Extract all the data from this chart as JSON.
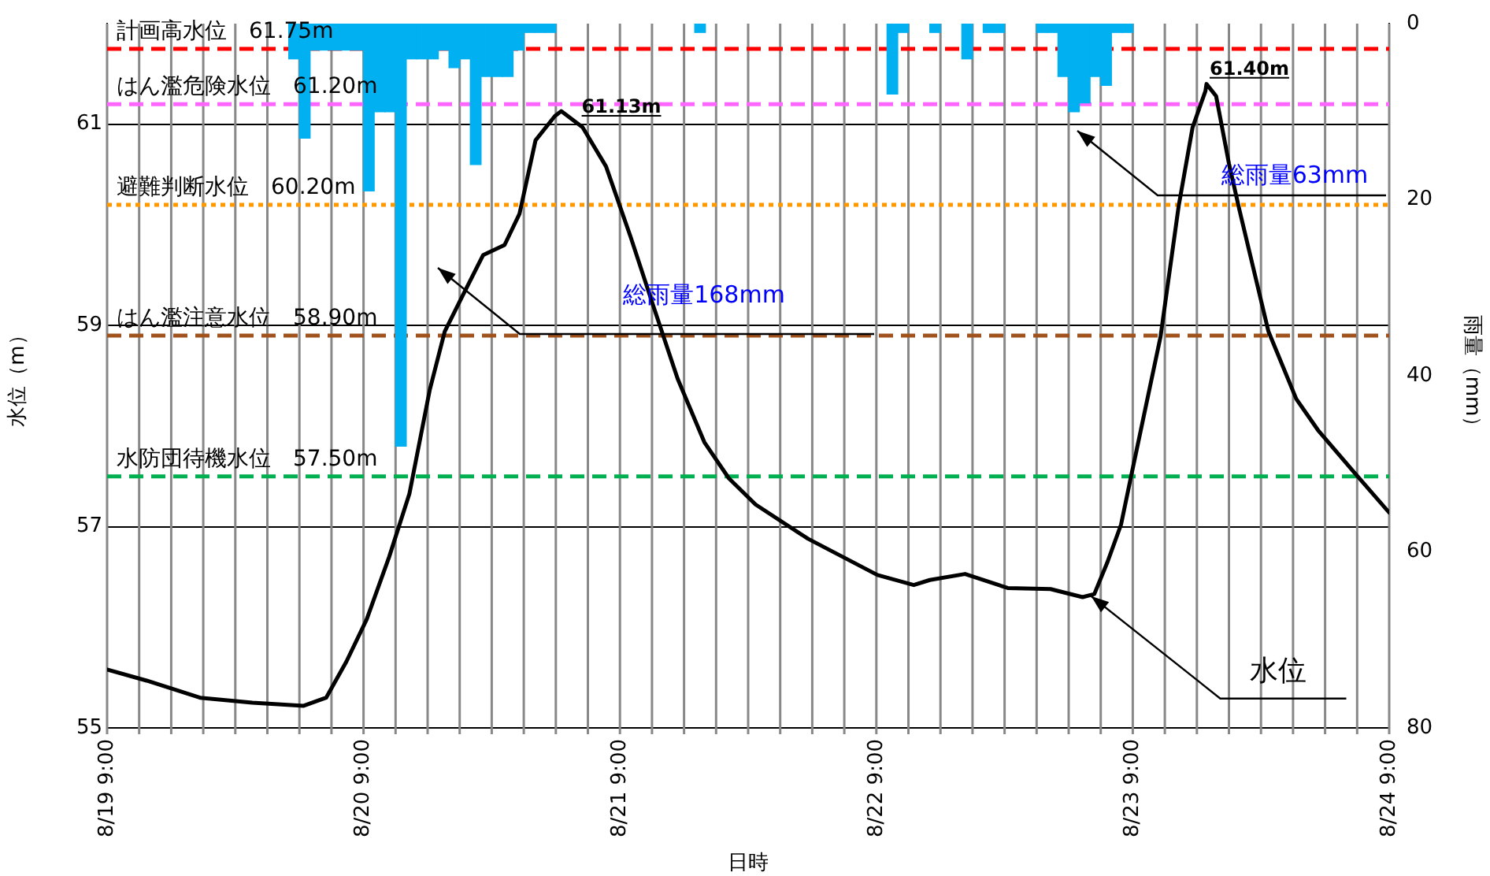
{
  "chart_data": {
    "type": "line",
    "xlabel": "日時",
    "ylabel": "水位（m）",
    "y2label": "雨量（mm）",
    "xlim": [
      "--08-19T09:00",
      "--08-24T09:00"
    ],
    "xticks": [
      {
        "value": "--08-19T09:00",
        "label": "8/19 9:00"
      },
      {
        "value": "--08-19T12:00",
        "label": null
      },
      {
        "value": "--08-19T15:00",
        "label": null
      },
      {
        "value": "--08-19T18:00",
        "label": null
      },
      {
        "value": "--08-19T21:00",
        "label": null
      },
      {
        "value": "--08-20T00:00",
        "label": null
      },
      {
        "value": "--08-20T03:00",
        "label": null
      },
      {
        "value": "--08-20T06:00",
        "label": null
      },
      {
        "value": "--08-20T09:00",
        "label": "8/20 9:00"
      },
      {
        "value": "--08-20T12:00",
        "label": null
      },
      {
        "value": "--08-20T15:00",
        "label": null
      },
      {
        "value": "--08-20T18:00",
        "label": null
      },
      {
        "value": "--08-20T21:00",
        "label": null
      },
      {
        "value": "--08-21T00:00",
        "label": null
      },
      {
        "value": "--08-21T03:00",
        "label": null
      },
      {
        "value": "--08-21T06:00",
        "label": null
      },
      {
        "value": "--08-21T09:00",
        "label": "8/21 9:00"
      },
      {
        "value": "--08-21T12:00",
        "label": null
      },
      {
        "value": "--08-21T15:00",
        "label": null
      },
      {
        "value": "--08-21T18:00",
        "label": null
      },
      {
        "value": "--08-21T21:00",
        "label": null
      },
      {
        "value": "--08-22T00:00",
        "label": null
      },
      {
        "value": "--08-22T03:00",
        "label": null
      },
      {
        "value": "--08-22T06:00",
        "label": null
      },
      {
        "value": "--08-22T09:00",
        "label": "8/22 9:00"
      },
      {
        "value": "--08-22T12:00",
        "label": null
      },
      {
        "value": "--08-22T15:00",
        "label": null
      },
      {
        "value": "--08-22T18:00",
        "label": null
      },
      {
        "value": "--08-22T21:00",
        "label": null
      },
      {
        "value": "--08-23T00:00",
        "label": null
      },
      {
        "value": "--08-23T03:00",
        "label": null
      },
      {
        "value": "--08-23T06:00",
        "label": null
      },
      {
        "value": "--08-23T09:00",
        "label": "8/23 9:00"
      },
      {
        "value": "--08-23T12:00",
        "label": null
      },
      {
        "value": "--08-23T15:00",
        "label": null
      },
      {
        "value": "--08-23T18:00",
        "label": null
      },
      {
        "value": "--08-23T21:00",
        "label": null
      },
      {
        "value": "--08-24T00:00",
        "label": null
      },
      {
        "value": "--08-24T03:00",
        "label": null
      },
      {
        "value": "--08-24T06:00",
        "label": null
      },
      {
        "value": "--08-24T09:00",
        "label": "8/24 9:00"
      }
    ],
    "ylim": [
      55,
      62
    ],
    "yticks": [
      55,
      57,
      59,
      61
    ],
    "y2lim": [
      80,
      0
    ],
    "y2ticks": [
      0,
      20,
      40,
      60,
      80
    ],
    "grid": true,
    "marker": "none",
    "line_style": "solid",
    "series": [
      {
        "type": "bar",
        "axis": "y2",
        "color": "#00b0f0",
        "x": [
          "--08-20T02:30",
          "--08-20T03:30",
          "--08-20T04:30",
          "--08-20T05:30",
          "--08-20T06:30",
          "--08-20T07:30",
          "--08-20T08:30",
          "--08-20T09:30",
          "--08-20T10:30",
          "--08-20T11:30",
          "--08-20T12:30",
          "--08-20T13:30",
          "--08-20T14:30",
          "--08-20T15:30",
          "--08-20T16:30",
          "--08-20T17:30",
          "--08-20T18:30",
          "--08-20T19:30",
          "--08-20T20:30",
          "--08-20T21:30",
          "--08-20T22:30",
          "--08-20T23:30",
          "--08-21T00:30",
          "--08-21T01:30",
          "--08-21T02:30",
          "--08-21T16:30",
          "--08-22T10:30",
          "--08-22T11:30",
          "--08-22T14:30",
          "--08-22T17:30",
          "--08-22T19:30",
          "--08-22T20:30",
          "--08-23T00:30",
          "--08-23T01:30",
          "--08-23T02:30",
          "--08-23T03:30",
          "--08-23T04:30",
          "--08-23T05:30",
          "--08-23T06:30",
          "--08-23T07:30",
          "--08-23T08:30"
        ],
        "values": [
          4,
          13,
          3,
          3,
          3,
          3,
          3,
          19,
          10,
          10,
          48,
          4,
          4,
          4,
          3,
          5,
          4,
          16,
          6,
          6,
          6,
          3,
          1,
          1,
          1,
          1,
          8,
          1,
          1,
          4,
          1,
          1,
          1,
          1,
          6,
          10,
          9,
          6,
          7,
          1,
          1
        ]
      },
      {
        "color": "#000000",
        "x": [
          "--08-19T09:00",
          "--08-19T12:42",
          "--08-19T17:42",
          "--08-19T22:36",
          "--08-20T03:24",
          "--08-20T05:30",
          "--08-20T07:24",
          "--08-20T09:18",
          "--08-20T11:24",
          "--08-20T13:18",
          "--08-20T15:12",
          "--08-20T16:36",
          "--08-20T18:12",
          "--08-20T20:12",
          "--08-20T22:12",
          "--08-20T23:36",
          "--08-21T01:06",
          "--08-21T02:54",
          "--08-21T03:30",
          "--08-21T05:30",
          "--08-21T07:42",
          "--08-21T10:00",
          "--08-21T12:12",
          "--08-21T14:24",
          "--08-21T16:54",
          "--08-21T19:12",
          "--08-21T21:42",
          "--08-22T02:36",
          "--08-22T09:06",
          "--08-22T12:30",
          "--08-22T14:00",
          "--08-22T17:18",
          "--08-22T21:18",
          "--08-23T01:18",
          "--08-23T04:18",
          "--08-23T05:24",
          "--08-23T06:36",
          "--08-23T07:54",
          "--08-23T08:48",
          "--08-23T11:36",
          "--08-23T13:18",
          "--08-23T14:36",
          "--08-23T15:48",
          "--08-23T15:54",
          "--08-23T16:48",
          "--08-23T18:00",
          "--08-23T19:00",
          "--08-23T21:42",
          "--08-24T00:18",
          "--08-24T02:24",
          "--08-24T05:48",
          "--08-24T09:00"
        ],
        "values": [
          55.58,
          55.47,
          55.3,
          55.25,
          55.22,
          55.3,
          55.66,
          56.08,
          56.7,
          57.33,
          58.36,
          58.94,
          59.28,
          59.7,
          59.8,
          60.11,
          60.84,
          61.08,
          61.13,
          60.97,
          60.58,
          59.88,
          59.17,
          58.47,
          57.84,
          57.48,
          57.22,
          56.88,
          56.52,
          56.42,
          56.47,
          56.53,
          56.39,
          56.38,
          56.3,
          56.33,
          56.64,
          57.02,
          57.48,
          58.89,
          60.19,
          60.97,
          61.33,
          61.4,
          61.28,
          60.61,
          60.14,
          58.94,
          58.27,
          57.95,
          57.53,
          57.14
        ]
      }
    ],
    "ref_lines": [
      {
        "axis": "y",
        "value": 61.75,
        "label": "計画高水位　61.75m",
        "color": "#ff0000",
        "line_style": "dashed"
      },
      {
        "axis": "y",
        "value": 61.2,
        "label": "はん濫危険水位　61.20m",
        "color": "#ff66ff",
        "line_style": "dashed"
      },
      {
        "axis": "y",
        "value": 60.2,
        "label": "避難判断水位　60.20m",
        "color": "#ff9900",
        "line_style": "dotted"
      },
      {
        "axis": "y",
        "value": 58.9,
        "label": "はん濫注意水位　58.90m",
        "color": "#a0521d",
        "line_style": "dashed"
      },
      {
        "axis": "y",
        "value": 57.5,
        "label": "水防団待機水位　57.50m",
        "color": "#00b050",
        "line_style": "dashed"
      }
    ],
    "annotations": [
      {
        "text": "61.13m",
        "x": "--08-21T03:30",
        "y": 61.13
      },
      {
        "text": "61.40m",
        "x": "--08-23T15:54",
        "y": 61.4
      },
      "総雨量168mm",
      "総雨量63mm",
      {
        "text": "水位",
        "x": "--08-23T05:06",
        "y": 56.31
      }
    ]
  }
}
